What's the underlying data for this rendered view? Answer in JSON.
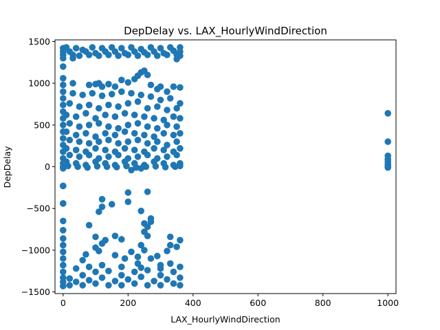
{
  "chart_data": {
    "type": "scatter",
    "title": "DepDelay vs. LAX_HourlyWindDirection",
    "xlabel": "LAX_HourlyWindDirection",
    "ylabel": "DepDelay",
    "xlim": [
      -25,
      1025
    ],
    "ylim": [
      -1520,
      1520
    ],
    "xticks": [
      0,
      200,
      400,
      600,
      800,
      1000
    ],
    "yticks": [
      -1500,
      -1000,
      -500,
      0,
      500,
      1000,
      1500
    ],
    "grid": false,
    "marker_color": "#1f77b4",
    "series": [
      {
        "points": [
          [
            0,
            1420
          ],
          [
            0,
            1380
          ],
          [
            0,
            1340
          ],
          [
            0,
            1300
          ],
          [
            0,
            1200
          ],
          [
            0,
            1060
          ],
          [
            0,
            980
          ],
          [
            0,
            900
          ],
          [
            0,
            820
          ],
          [
            0,
            740
          ],
          [
            0,
            660
          ],
          [
            0,
            580
          ],
          [
            0,
            500
          ],
          [
            0,
            420
          ],
          [
            0,
            340
          ],
          [
            0,
            260
          ],
          [
            0,
            180
          ],
          [
            0,
            100
          ],
          [
            0,
            40
          ],
          [
            0,
            0
          ],
          [
            0,
            -20
          ],
          [
            0,
            -230
          ],
          [
            0,
            -440
          ],
          [
            0,
            -650
          ],
          [
            0,
            -760
          ],
          [
            0,
            -860
          ],
          [
            0,
            -940
          ],
          [
            0,
            -1020
          ],
          [
            0,
            -1100
          ],
          [
            0,
            -1180
          ],
          [
            0,
            -1260
          ],
          [
            0,
            -1330
          ],
          [
            0,
            -1380
          ],
          [
            0,
            -1430
          ],
          [
            10,
            1430
          ],
          [
            20,
            1380
          ],
          [
            30,
            1340
          ],
          [
            40,
            1420
          ],
          [
            50,
            1330
          ],
          [
            60,
            1400
          ],
          [
            70,
            1380
          ],
          [
            80,
            1340
          ],
          [
            90,
            1430
          ],
          [
            100,
            1360
          ],
          [
            110,
            1330
          ],
          [
            120,
            1420
          ],
          [
            130,
            1380
          ],
          [
            140,
            1340
          ],
          [
            150,
            1430
          ],
          [
            160,
            1380
          ],
          [
            170,
            1330
          ],
          [
            180,
            1420
          ],
          [
            190,
            1360
          ],
          [
            200,
            1340
          ],
          [
            210,
            1430
          ],
          [
            220,
            1380
          ],
          [
            230,
            1330
          ],
          [
            240,
            1410
          ],
          [
            250,
            1370
          ],
          [
            260,
            1340
          ],
          [
            270,
            1430
          ],
          [
            280,
            1380
          ],
          [
            290,
            1330
          ],
          [
            300,
            1420
          ],
          [
            310,
            1360
          ],
          [
            320,
            1340
          ],
          [
            330,
            1430
          ],
          [
            340,
            1390
          ],
          [
            350,
            1340
          ],
          [
            360,
            1430
          ],
          [
            360,
            1380
          ],
          [
            360,
            1330
          ],
          [
            350,
            1290
          ],
          [
            30,
            1300
          ],
          [
            30,
            1000
          ],
          [
            80,
            980
          ],
          [
            100,
            990
          ],
          [
            110,
            1000
          ],
          [
            120,
            960
          ],
          [
            140,
            990
          ],
          [
            160,
            960
          ],
          [
            180,
            1040
          ],
          [
            200,
            1010
          ],
          [
            220,
            1050
          ],
          [
            230,
            1090
          ],
          [
            240,
            1130
          ],
          [
            250,
            1150
          ],
          [
            260,
            1100
          ],
          [
            270,
            980
          ],
          [
            290,
            930
          ],
          [
            300,
            960
          ],
          [
            320,
            900
          ],
          [
            340,
            960
          ],
          [
            360,
            950
          ],
          [
            30,
            880
          ],
          [
            60,
            860
          ],
          [
            90,
            880
          ],
          [
            120,
            850
          ],
          [
            150,
            870
          ],
          [
            180,
            900
          ],
          [
            210,
            880
          ],
          [
            240,
            860
          ],
          [
            270,
            840
          ],
          [
            300,
            800
          ],
          [
            330,
            820
          ],
          [
            360,
            760
          ],
          [
            20,
            760
          ],
          [
            50,
            720
          ],
          [
            80,
            740
          ],
          [
            110,
            700
          ],
          [
            140,
            740
          ],
          [
            170,
            720
          ],
          [
            200,
            760
          ],
          [
            230,
            780
          ],
          [
            260,
            700
          ],
          [
            290,
            720
          ],
          [
            320,
            680
          ],
          [
            350,
            700
          ],
          [
            10,
            620
          ],
          [
            40,
            600
          ],
          [
            70,
            640
          ],
          [
            100,
            580
          ],
          [
            130,
            620
          ],
          [
            160,
            600
          ],
          [
            190,
            640
          ],
          [
            220,
            620
          ],
          [
            250,
            600
          ],
          [
            280,
            580
          ],
          [
            310,
            560
          ],
          [
            340,
            600
          ],
          [
            360,
            580
          ],
          [
            20,
            520
          ],
          [
            50,
            480
          ],
          [
            80,
            500
          ],
          [
            110,
            520
          ],
          [
            140,
            480
          ],
          [
            170,
            460
          ],
          [
            200,
            500
          ],
          [
            230,
            520
          ],
          [
            260,
            480
          ],
          [
            290,
            460
          ],
          [
            320,
            500
          ],
          [
            350,
            480
          ],
          [
            10,
            420
          ],
          [
            40,
            380
          ],
          [
            70,
            400
          ],
          [
            100,
            360
          ],
          [
            130,
            400
          ],
          [
            160,
            380
          ],
          [
            190,
            420
          ],
          [
            220,
            400
          ],
          [
            250,
            380
          ],
          [
            280,
            360
          ],
          [
            310,
            400
          ],
          [
            340,
            380
          ],
          [
            360,
            400
          ],
          [
            20,
            320
          ],
          [
            50,
            300
          ],
          [
            80,
            280
          ],
          [
            110,
            300
          ],
          [
            140,
            320
          ],
          [
            170,
            280
          ],
          [
            200,
            300
          ],
          [
            230,
            320
          ],
          [
            260,
            280
          ],
          [
            290,
            300
          ],
          [
            320,
            260
          ],
          [
            350,
            300
          ],
          [
            10,
            220
          ],
          [
            40,
            200
          ],
          [
            70,
            180
          ],
          [
            100,
            220
          ],
          [
            130,
            200
          ],
          [
            160,
            180
          ],
          [
            190,
            220
          ],
          [
            220,
            200
          ],
          [
            250,
            180
          ],
          [
            280,
            220
          ],
          [
            310,
            200
          ],
          [
            340,
            180
          ],
          [
            360,
            220
          ],
          [
            20,
            140
          ],
          [
            50,
            120
          ],
          [
            80,
            140
          ],
          [
            110,
            100
          ],
          [
            140,
            120
          ],
          [
            170,
            140
          ],
          [
            200,
            100
          ],
          [
            230,
            120
          ],
          [
            260,
            140
          ],
          [
            290,
            100
          ],
          [
            320,
            120
          ],
          [
            350,
            140
          ],
          [
            10,
            60
          ],
          [
            40,
            40
          ],
          [
            70,
            20
          ],
          [
            100,
            60
          ],
          [
            130,
            40
          ],
          [
            160,
            20
          ],
          [
            190,
            60
          ],
          [
            220,
            40
          ],
          [
            250,
            20
          ],
          [
            280,
            60
          ],
          [
            310,
            40
          ],
          [
            340,
            20
          ],
          [
            360,
            40
          ],
          [
            15,
            10
          ],
          [
            45,
            0
          ],
          [
            75,
            -10
          ],
          [
            105,
            5
          ],
          [
            135,
            0
          ],
          [
            165,
            -5
          ],
          [
            195,
            10
          ],
          [
            225,
            -10
          ],
          [
            255,
            0
          ],
          [
            285,
            5
          ],
          [
            315,
            -5
          ],
          [
            345,
            0
          ],
          [
            360,
            10
          ],
          [
            210,
            -40
          ],
          [
            240,
            -20
          ],
          [
            0,
            -230
          ],
          [
            0,
            -440
          ],
          [
            120,
            -390
          ],
          [
            150,
            -450
          ],
          [
            110,
            -540
          ],
          [
            120,
            -480
          ],
          [
            200,
            -310
          ],
          [
            200,
            -420
          ],
          [
            260,
            -300
          ],
          [
            240,
            -530
          ],
          [
            270,
            -620
          ],
          [
            270,
            -660
          ],
          [
            250,
            -680
          ],
          [
            260,
            -720
          ],
          [
            80,
            -700
          ],
          [
            160,
            -830
          ],
          [
            180,
            -870
          ],
          [
            250,
            -780
          ],
          [
            260,
            -830
          ],
          [
            330,
            -840
          ],
          [
            330,
            -940
          ],
          [
            360,
            -880
          ],
          [
            100,
            -840
          ],
          [
            120,
            -920
          ],
          [
            130,
            -880
          ],
          [
            100,
            -970
          ],
          [
            110,
            -1010
          ],
          [
            210,
            -1020
          ],
          [
            230,
            -1080
          ],
          [
            240,
            -940
          ],
          [
            250,
            -1000
          ],
          [
            320,
            -1010
          ],
          [
            350,
            -960
          ],
          [
            70,
            -1050
          ],
          [
            60,
            -1120
          ],
          [
            160,
            -1060
          ],
          [
            190,
            -1100
          ],
          [
            270,
            -1100
          ],
          [
            290,
            -1070
          ],
          [
            300,
            -1180
          ],
          [
            230,
            -1160
          ],
          [
            330,
            -1160
          ],
          [
            20,
            -1420
          ],
          [
            20,
            -1340
          ],
          [
            40,
            -1380
          ],
          [
            60,
            -1300
          ],
          [
            60,
            -1420
          ],
          [
            80,
            -1360
          ],
          [
            100,
            -1400
          ],
          [
            100,
            -1260
          ],
          [
            120,
            -1330
          ],
          [
            140,
            -1420
          ],
          [
            140,
            -1250
          ],
          [
            160,
            -1370
          ],
          [
            180,
            -1300
          ],
          [
            180,
            -1420
          ],
          [
            200,
            -1350
          ],
          [
            220,
            -1400
          ],
          [
            220,
            -1260
          ],
          [
            240,
            -1320
          ],
          [
            260,
            -1420
          ],
          [
            260,
            -1240
          ],
          [
            280,
            -1370
          ],
          [
            300,
            -1300
          ],
          [
            300,
            -1420
          ],
          [
            320,
            -1350
          ],
          [
            340,
            -1400
          ],
          [
            340,
            -1260
          ],
          [
            360,
            -1330
          ],
          [
            360,
            -1420
          ],
          [
            360,
            -1200
          ],
          [
            40,
            -1220
          ],
          [
            80,
            -1200
          ],
          [
            120,
            -1180
          ],
          [
            180,
            -1200
          ],
          [
            240,
            -1210
          ],
          [
            300,
            -1220
          ],
          [
            1000,
            640
          ],
          [
            1000,
            300
          ],
          [
            1000,
            130
          ],
          [
            1000,
            90
          ],
          [
            1000,
            60
          ],
          [
            1000,
            30
          ],
          [
            1000,
            10
          ],
          [
            1000,
            0
          ],
          [
            1000,
            -10
          ]
        ]
      }
    ]
  }
}
